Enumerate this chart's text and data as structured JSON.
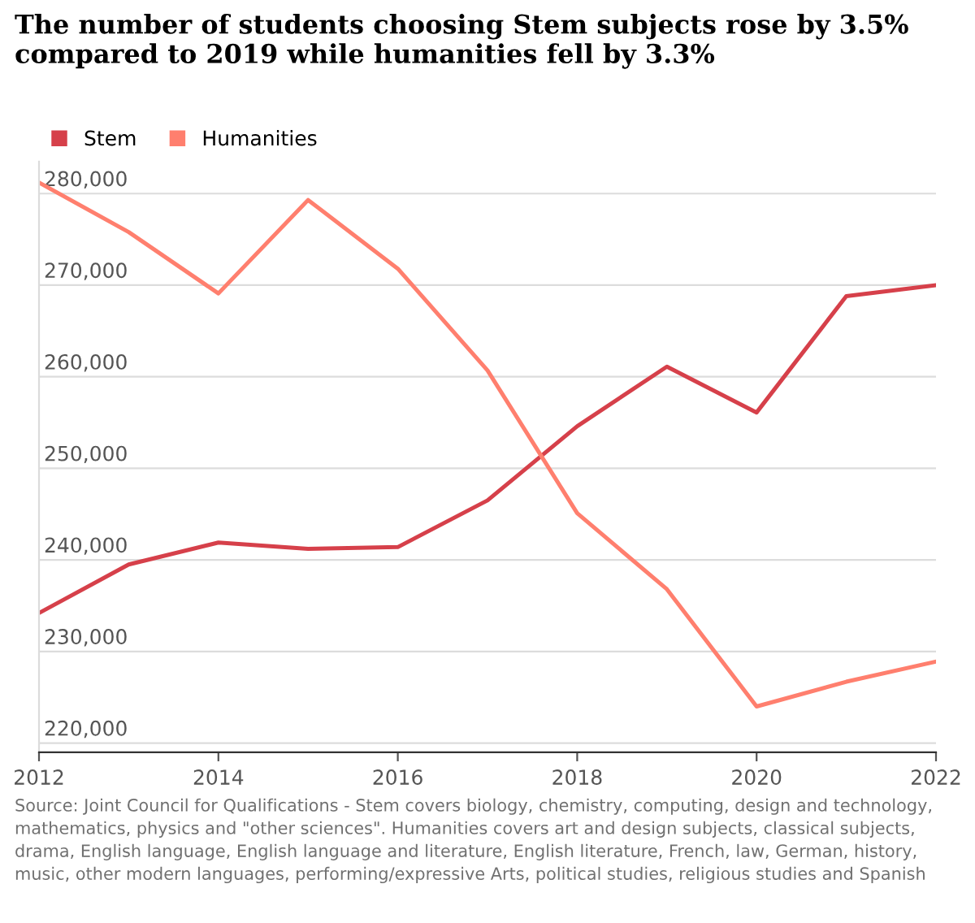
{
  "chart_data": {
    "type": "line",
    "title": "The number of students choosing Stem subjects rose by 3.5% compared to 2019 while humanities fell by 3.3%",
    "x": [
      2012,
      2013,
      2014,
      2015,
      2016,
      2017,
      2018,
      2019,
      2020,
      2021,
      2022
    ],
    "series": [
      {
        "name": "Stem",
        "color": "#d6404a",
        "values": [
          234200,
          239500,
          241900,
          241200,
          241400,
          246500,
          254600,
          261100,
          256100,
          268800,
          270000
        ]
      },
      {
        "name": "Humanities",
        "color": "#ff7f6e",
        "values": [
          281200,
          275800,
          269100,
          279300,
          271800,
          260700,
          245100,
          236800,
          224000,
          226700,
          228900
        ]
      }
    ],
    "xlim": [
      2012,
      2022
    ],
    "xticks": [
      2012,
      2014,
      2016,
      2018,
      2020,
      2022
    ],
    "ylim": [
      219000,
      283500
    ],
    "yticks": [
      {
        "value": 220000,
        "label": "220,000"
      },
      {
        "value": 230000,
        "label": "230,000"
      },
      {
        "value": 240000,
        "label": "240,000"
      },
      {
        "value": 250000,
        "label": "250,000"
      },
      {
        "value": 260000,
        "label": "260,000"
      },
      {
        "value": 270000,
        "label": "270,000"
      },
      {
        "value": 280000,
        "label": "280,000"
      }
    ],
    "grid": "y",
    "legend": "top left",
    "annotations": [
      "Source: Joint Council for Qualifications - Stem covers biology, chemistry, computing, design and technology, mathematics, physics and \"other sciences\". Humanities covers art and design subjects, classical subjects, drama, English language, English language and literature, English literature, French, law, German, history, music, other modern languages, performing/expressive Arts, political studies, religious studies and Spanish"
    ]
  }
}
